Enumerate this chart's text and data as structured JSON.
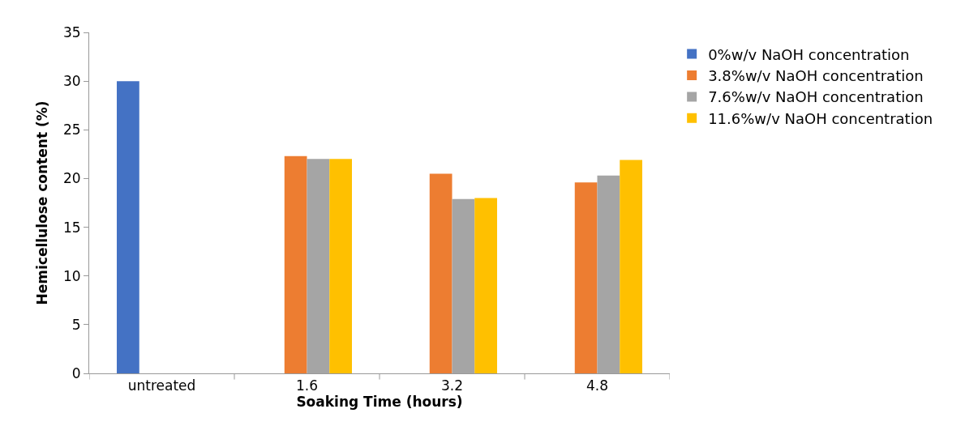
{
  "chart_data": {
    "type": "bar",
    "xlabel": "Soaking Time (hours)",
    "ylabel": "Hemicellulose content (%)",
    "categories": [
      "untreated",
      "1.6",
      "3.2",
      "4.8"
    ],
    "series": [
      {
        "name": "0%w/v NaOH concentration",
        "color": "#4472c4",
        "values": [
          30,
          null,
          null,
          null
        ]
      },
      {
        "name": "3.8%w/v NaOH concentration",
        "color": "#ed7d31",
        "values": [
          null,
          22.3,
          20.5,
          19.6
        ]
      },
      {
        "name": "7.6%w/v NaOH concentration",
        "color": "#a5a5a5",
        "values": [
          null,
          22.0,
          17.9,
          20.3
        ]
      },
      {
        "name": "11.6%w/v NaOH concentration",
        "color": "#ffc000",
        "values": [
          null,
          22.0,
          18.0,
          21.9
        ]
      }
    ],
    "ylim": [
      0,
      35
    ],
    "yticks": [
      0,
      5,
      10,
      15,
      20,
      25,
      30,
      35
    ],
    "legend": "top right"
  }
}
